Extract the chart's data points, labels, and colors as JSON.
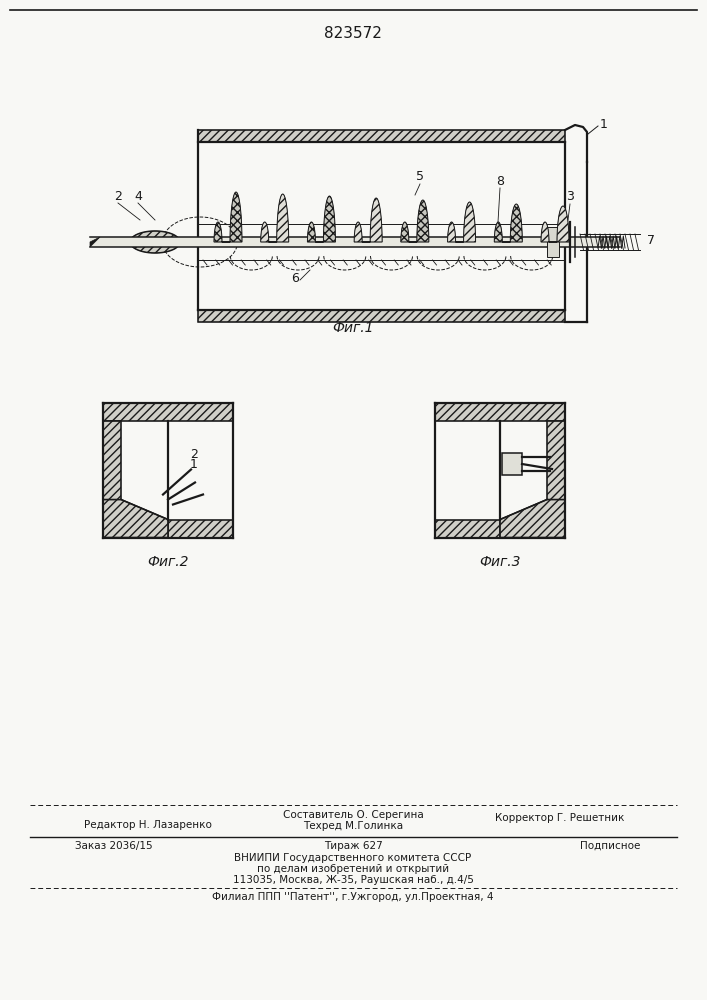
{
  "patent_number": "823572",
  "page_color": "#f8f8f5",
  "fig1_label": "Фиг.1",
  "fig2_label": "Фиг.2",
  "fig3_label": "Фиг.3",
  "footer_line1_left": "Редактор Н. Лазаренко",
  "footer_line1_center_top": "Составитель О. Серегина",
  "footer_line1_center_bot": "Техред М.Голинка",
  "footer_line1_right": "Корректор Г. Решетник",
  "footer_line2_left": "Заказ 2036/15",
  "footer_line2_center": "Тираж 627",
  "footer_line2_right": "Подписное",
  "footer_line3": "ВНИИПИ Государственного комитета СССР",
  "footer_line4": "по делам изобретений и открытий",
  "footer_line5": "113035, Москва, Ж-35, Раушская наб., д.4/5",
  "footer_line6": "Филиал ППП ''Патент'', г.Ужгород, ул.Проектная, 4",
  "dc": "#1a1a1a",
  "fill_hatch": "#d0cfc8",
  "fill_blade_cross": "#c8c8c0",
  "fill_blade_diag": "#e0dfd8",
  "fill_white": "#f0f0ec"
}
